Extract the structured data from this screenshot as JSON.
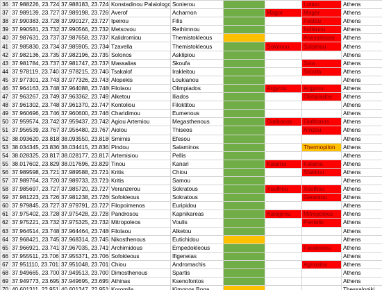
{
  "colors": {
    "green": "#70ad47",
    "red": "#ff0000",
    "yellow": "#ffc000",
    "row_header": "#f0f0f0",
    "grid_line": "#d4d4d4"
  },
  "rows": [
    {
      "n": "36",
      "c1": "37.988226, 23.724572",
      "c2": "37.988183, 23.724836",
      "c3": "Konstadinou Palaiologou",
      "c4": "Sonierou",
      "c5": "",
      "c6": "",
      "c7": "Lotton",
      "c8": "Athens",
      "f5": "green",
      "f6": "",
      "f7": "red"
    },
    {
      "n": "37",
      "c1": "37.989139, 23.727275",
      "c2": "37.989198, 23.726910",
      "c3": "Averof",
      "c4": "Acharnon",
      "c5": "",
      "c6": "Magor",
      "c7": "Magor",
      "c8": "Athens",
      "f5": "green",
      "f6": "red",
      "f7": "red"
    },
    {
      "n": "38",
      "c1": "37.990383, 23.728028",
      "c2": "37.990127, 23.727729",
      "c3": "Ipeirou",
      "c4": "Filis",
      "c5": "",
      "c6": "",
      "c7": "Festou",
      "c8": "Athens",
      "f5": "green",
      "f6": "",
      "f7": "red"
    },
    {
      "n": "39",
      "c1": "37.990581, 23.732561",
      "c2": "37.990566, 23.732668",
      "c3": "Metsovou",
      "c4": "Rethimnou",
      "c5": "",
      "c6": "",
      "c7": "Iodlanou",
      "c8": "Athens",
      "f5": "green",
      "f6": "",
      "f7": "red"
    },
    {
      "n": "40",
      "c1": "37.987631, 23.737356",
      "c2": "37.987658, 23.737329",
      "c3": "Kalidromiou",
      "c4": "Themistokleous",
      "c5": "",
      "c6": "",
      "c7": "Anexartisias",
      "c8": "Athens",
      "f5": "yellow",
      "f6": "",
      "f7": "red"
    },
    {
      "n": "41",
      "c1": "37.985830, 23.734096",
      "c2": "37.985905, 23.734090",
      "c3": "Tzavella",
      "c4": "Themistokleous",
      "c5": "",
      "c6": "Solomou",
      "c7": "Solomou",
      "c8": "Athens",
      "f5": "green",
      "f6": "red",
      "f7": "red"
    },
    {
      "n": "42",
      "c1": "37.982136, 23.735329",
      "c2": "37.982196, 23.735342",
      "c3": "Solonos",
      "c4": "Asklipiou",
      "c5": "",
      "c6": "",
      "c7": "",
      "c8": "Athens",
      "f5": "green",
      "f6": "",
      "f7": ""
    },
    {
      "n": "43",
      "c1": "37.981784, 23.737087",
      "c2": "37.981747, 23.737009",
      "c3": "Massalias",
      "c4": "Skoufa",
      "c5": "",
      "c6": "",
      "c7": "Sina",
      "c8": "Athens",
      "f5": "green",
      "f6": "",
      "f7": "red"
    },
    {
      "n": "44",
      "c1": "37.978119, 23.740486",
      "c2": "37.978215, 23.740420",
      "c3": "Tsakalof",
      "c4": "Irakleitou",
      "c5": "",
      "c6": "",
      "c7": "Skoufa",
      "c8": "Athens",
      "f5": "green",
      "f6": "",
      "f7": "red"
    },
    {
      "n": "45",
      "c1": "37.977301, 23.743434",
      "c2": "37.977326, 23.743537",
      "c3": "Alopekis",
      "c4": "Loukianou",
      "c5": "",
      "c6": "",
      "c7": "",
      "c8": "Athens",
      "f5": "green",
      "f6": "",
      "f7": ""
    },
    {
      "n": "46",
      "c1": "37.964163, 23.748121",
      "c2": "37.964088, 23.748005",
      "c3": "Filolaou",
      "c4": "Olimpiados",
      "c5": "",
      "c6": "Argyrou",
      "c7": "Argyrou",
      "c8": "Athens",
      "f5": "green",
      "f6": "red",
      "f7": "red"
    },
    {
      "n": "47",
      "c1": "37.963267, 23.749297",
      "c2": "37.963362, 23.749223",
      "c3": "Alketou",
      "c4": "Iliados",
      "c5": "",
      "c6": "",
      "c7": "Olimpiados",
      "c8": "Athens",
      "f5": "green",
      "f6": "",
      "f7": "red"
    },
    {
      "n": "48",
      "c1": "37.961302, 23.748012",
      "c2": "37.961370, 23.747938",
      "c3": "Kontoliou",
      "c4": "Filoktitou",
      "c5": "",
      "c6": "",
      "c7": "",
      "c8": "Athens",
      "f5": "green",
      "f6": "",
      "f7": ""
    },
    {
      "n": "49",
      "c1": "37.960696, 23.746717",
      "c2": "37.960600, 23.746570",
      "c3": "Charidimou",
      "c4": "Eumenous",
      "c5": "",
      "c6": "",
      "c7": "",
      "c8": "Athens",
      "f5": "green",
      "f6": "",
      "f7": ""
    },
    {
      "n": "50",
      "c1": "37.959574, 23.742855",
      "c2": "37.959437, 23.742814",
      "c3": "Agiou Artemiou",
      "c4": "Megasthenous",
      "c5": "",
      "c6": "Glafkonos",
      "c7": "Glafkonos",
      "c8": "Athens",
      "f5": "green",
      "f6": "red",
      "f7": "red"
    },
    {
      "n": "51",
      "c1": "37.956539, 23.767544",
      "c2": "37.956480, 23.767392",
      "c3": "Aiolou",
      "c4": "Thiseos",
      "c5": "",
      "c6": "",
      "c7": "Amzou",
      "c8": "Athens",
      "f5": "green",
      "f6": "",
      "f7": "red"
    },
    {
      "n": "52",
      "c1": "38.093620, 23.818520",
      "c2": "38.093550, 23.818673",
      "c3": "Smirnis",
      "c4": "Efesou",
      "c5": "",
      "c6": "",
      "c7": "",
      "c8": "Athens",
      "f5": "green",
      "f6": "",
      "f7": ""
    },
    {
      "n": "53",
      "c1": "38.034345, 23.836342",
      "c2": "38.034415, 23.836374",
      "c3": "Pindou",
      "c4": "Salaminos",
      "c5": "",
      "c6": "",
      "c7": "Thermopilon",
      "c8": "Athens",
      "f5": "green",
      "f6": "",
      "f7": "yellow"
    },
    {
      "n": "54",
      "c1": "38.028325, 23.817542",
      "c2": "38.028177, 23.817410",
      "c3": "Artemisiou",
      "c4": "Pellis",
      "c5": "",
      "c6": "",
      "c7": "",
      "c8": "Athens",
      "f5": "green",
      "f6": "",
      "f7": ""
    },
    {
      "n": "55",
      "c1": "38.017602, 23.829854",
      "c2": "38.017696, 23.829774",
      "c3": "Tinou",
      "c4": "Kanari",
      "c5": "",
      "c6": "Kalama",
      "c7": "Kalama",
      "c8": "Athens",
      "f5": "green",
      "f6": "red",
      "f7": "red"
    },
    {
      "n": "56",
      "c1": "37.989598, 23.721817",
      "c2": "37.989588, 23.721880",
      "c3": "Kritis",
      "c4": "Chiou",
      "c5": "",
      "c6": "",
      "c7": "Sfaktiou",
      "c8": "Athens",
      "f5": "green",
      "f6": "",
      "f7": "red"
    },
    {
      "n": "57",
      "c1": "37.989764, 23.720821",
      "c2": "37.989733, 23.721013",
      "c3": "Kritis",
      "c4": "Samou",
      "c5": "",
      "c6": "",
      "c7": "",
      "c8": "Athens",
      "f5": "green",
      "f6": "",
      "f7": ""
    },
    {
      "n": "58",
      "c1": "37.985697, 23.727428",
      "c2": "37.985720, 23.727323",
      "c3": "Veranzerou",
      "c4": "Sokratous",
      "c5": "",
      "c6": "Xouthou",
      "c7": "Xouthou",
      "c8": "Athens",
      "f5": "green",
      "f6": "red",
      "f7": "red"
    },
    {
      "n": "59",
      "c1": "37.981223, 23.726190",
      "c2": "37.981238, 23.726091",
      "c3": "Sofokleous",
      "c4": "Sokratous",
      "c5": "",
      "c6": "",
      "c7": "Geraniou",
      "c8": "Athens",
      "f5": "green",
      "f6": "",
      "f7": "red"
    },
    {
      "n": "60",
      "c1": "37.979845, 23.727930",
      "c2": "37.979791, 23.727913",
      "c3": "Filopoimenos",
      "c4": "Euripidou",
      "c5": "",
      "c6": "",
      "c7": "",
      "c8": "Athens",
      "f5": "green",
      "f6": "",
      "f7": ""
    },
    {
      "n": "61",
      "c1": "37.975402, 23.728210",
      "c2": "37.975428, 23.728108",
      "c3": "Pandrosou",
      "c4": "Kapnikareas",
      "c5": "",
      "c6": "Kalogirou",
      "c7": "Mitropoleos",
      "c8": "Athens",
      "f5": "green",
      "f6": "red",
      "f7": "red"
    },
    {
      "n": "62",
      "c1": "37.975221, 23.732593",
      "c2": "37.975325, 23.732469",
      "c3": "Mitropoleos",
      "c4": "Voulis",
      "c5": "",
      "c6": "",
      "c7": "Pentelis",
      "c8": "Athens",
      "f5": "green",
      "f6": "",
      "f7": "red"
    },
    {
      "n": "63",
      "c1": "37.964514, 23.748723",
      "c2": "37.964464, 23.748635",
      "c3": "Filolaou",
      "c4": "Alketou",
      "c5": "",
      "c6": "",
      "c7": "",
      "c8": "Athens",
      "f5": "green",
      "f6": "",
      "f7": ""
    },
    {
      "n": "64",
      "c1": "37.968421, 23.745331",
      "c2": "37.968314, 23.745335",
      "c3": "Nikosthenous",
      "c4": "Eutichidou",
      "c5": "",
      "c6": "",
      "c7": "",
      "c8": "Athens",
      "f5": "yellow",
      "f6": "",
      "f7": ""
    },
    {
      "n": "65",
      "c1": "37.966921, 23.741744",
      "c2": "37.967035, 23.741964",
      "c3": "Archimidous",
      "c4": "Empedokleous",
      "c5": "",
      "c6": "",
      "c7": "Fassleidou",
      "c8": "Athens",
      "f5": "green",
      "f6": "",
      "f7": "red"
    },
    {
      "n": "66",
      "c1": "37.955511, 23.706632",
      "c2": "37.955371, 23.706406",
      "c3": "Sofokleous",
      "c4": "Ifigeneias",
      "c5": "",
      "c6": "",
      "c7": "",
      "c8": "Athens",
      "f5": "green",
      "f6": "",
      "f7": ""
    },
    {
      "n": "67",
      "c1": "37.951110, 23.701234",
      "c2": "37.951048, 23.701287",
      "c3": "Chiou",
      "c4": "Andromachis",
      "c5": "",
      "c6": "",
      "c7": "Agnostou",
      "c8": "Athens",
      "f5": "green",
      "f6": "",
      "f7": "red"
    },
    {
      "n": "68",
      "c1": "37.949665, 23.700907",
      "c2": "37.949513, 23.700713",
      "c3": "Dimosthenous",
      "c4": "Spartis",
      "c5": "",
      "c6": "",
      "c7": "",
      "c8": "Athens",
      "f5": "green",
      "f6": "",
      "f7": ""
    },
    {
      "n": "69",
      "c1": "37.949773, 23.695461",
      "c2": "37.949695, 23.695572",
      "c3": "Athinas",
      "c4": "Ksenofontos",
      "c5": "",
      "c6": "",
      "c7": "",
      "c8": "Athens",
      "f5": "green",
      "f6": "",
      "f7": ""
    },
    {
      "n": "70",
      "c1": "40.601311, 22.951769",
      "c2": "40.601347, 22.951966",
      "c3": "Koromila",
      "c4": "Kimonos Boga",
      "c5": "",
      "c6": "",
      "c7": "",
      "c8": "Thessaloniki",
      "f5": "yellow",
      "f6": "",
      "f7": ""
    }
  ]
}
